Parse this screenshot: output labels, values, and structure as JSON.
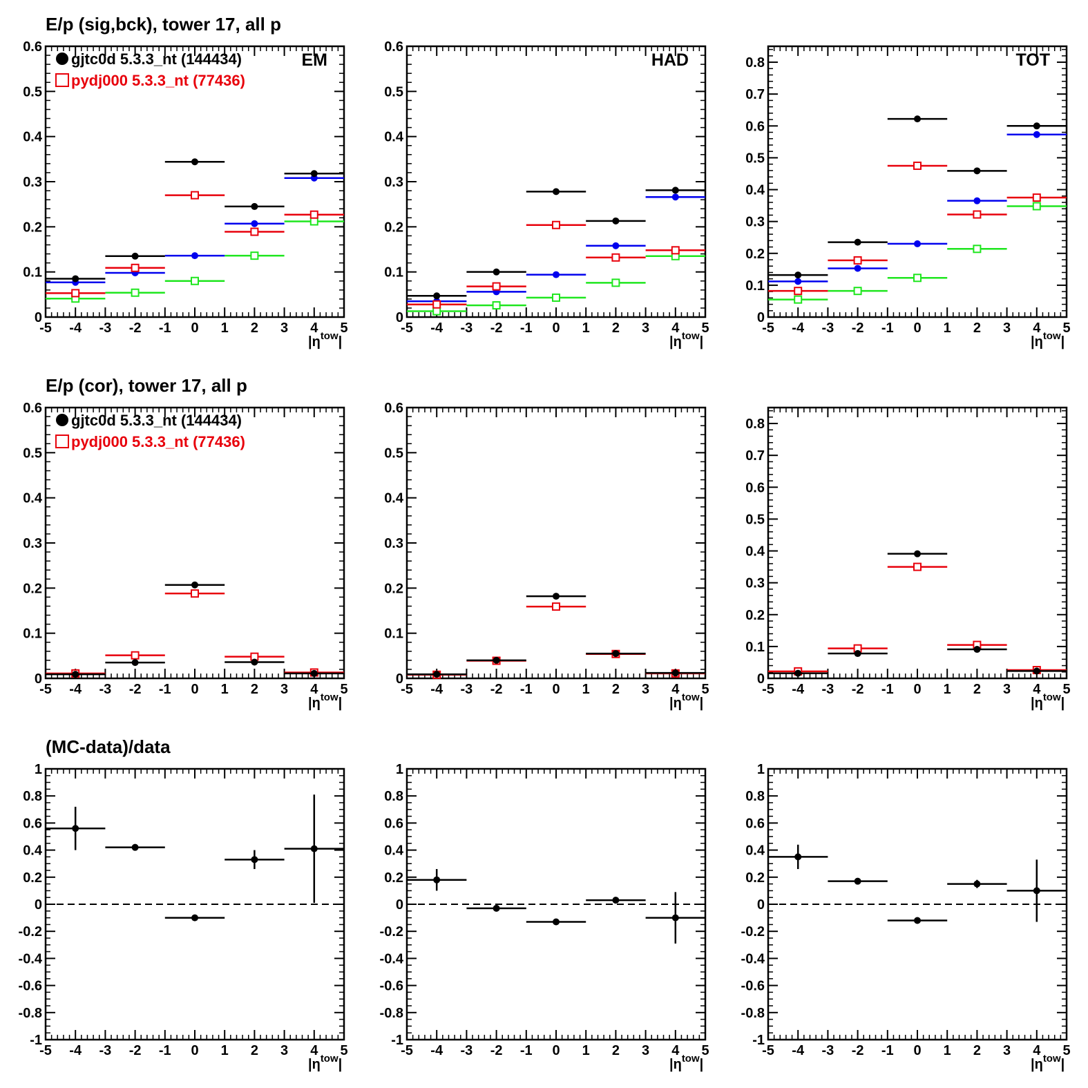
{
  "colors": {
    "data": "#000000",
    "mc": "#e8000b",
    "green": "#1ee61e",
    "blue": "#0000ee"
  },
  "row_titles": [
    "E/p (sig,bck), tower 17, all p",
    "E/p (cor), tower 17, all p",
    "(MC-data)/data"
  ],
  "legend": [
    {
      "label": "gjtc0d 5.3.3_nt (144434)",
      "color": "#000000",
      "marker": "filled-circle"
    },
    {
      "label": "pydj000 5.3.3_nt (77436)",
      "color": "#e8000b",
      "marker": "open-square"
    }
  ],
  "xaxis": {
    "label_main": "|η",
    "label_sup": "tow",
    "label_end": "|",
    "range": [
      -5,
      5
    ],
    "tick_labels": [
      "-5",
      "-4",
      "-3",
      "-2",
      "-1",
      "0",
      "1",
      "2",
      "3",
      "4",
      "5"
    ]
  },
  "panel_tags": [
    "EM",
    "HAD",
    "TOT"
  ],
  "y_tick_labels": {
    "r06": [
      "0",
      "0.1",
      "0.2",
      "0.3",
      "0.4",
      "0.5",
      "0.6"
    ],
    "r085": [
      "0",
      "0.1",
      "0.2",
      "0.3",
      "0.4",
      "0.5",
      "0.6",
      "0.7",
      "0.8"
    ],
    "ratio": [
      "-1",
      "-0.8",
      "-0.6",
      "-0.4",
      "-0.2",
      "0",
      "0.2",
      "0.4",
      "0.6",
      "0.8",
      "1"
    ]
  },
  "chart_data": [
    {
      "type": "scatter",
      "panel": "EM (sig,bck)",
      "x_bins": [
        [
          -5,
          -3
        ],
        [
          -3,
          -1
        ],
        [
          -1,
          1
        ],
        [
          1,
          3
        ],
        [
          3,
          5
        ]
      ],
      "xlim": [
        -5,
        5
      ],
      "ylim": [
        0,
        0.6
      ],
      "series": [
        {
          "name": "gjtc0d 5.3.3_nt (144434)",
          "color": "#000000",
          "marker": "circle",
          "x": [
            -4,
            -2,
            0,
            2,
            4
          ],
          "y": [
            0.085,
            0.135,
            0.344,
            0.245,
            0.318
          ]
        },
        {
          "name": "pydj000 5.3.3_nt (77436)",
          "color": "#e8000b",
          "marker": "square",
          "x": [
            -4,
            -2,
            0,
            2,
            4
          ],
          "y": [
            0.053,
            0.109,
            0.27,
            0.189,
            0.227
          ]
        },
        {
          "color": "#0000ee",
          "marker": "circle",
          "x": [
            -4,
            -2,
            0,
            2,
            4
          ],
          "y": [
            0.077,
            0.098,
            0.136,
            0.207,
            0.308
          ]
        },
        {
          "color": "#1ee61e",
          "marker": "square",
          "x": [
            -4,
            -2,
            0,
            2,
            4
          ],
          "y": [
            0.041,
            0.054,
            0.08,
            0.136,
            0.212
          ]
        }
      ]
    },
    {
      "type": "scatter",
      "panel": "HAD (sig,bck)",
      "x_bins": [
        [
          -5,
          -3
        ],
        [
          -3,
          -1
        ],
        [
          -1,
          1
        ],
        [
          1,
          3
        ],
        [
          3,
          5
        ]
      ],
      "xlim": [
        -5,
        5
      ],
      "ylim": [
        0,
        0.6
      ],
      "series": [
        {
          "name": "gjtc0d 5.3.3_nt (144434)",
          "color": "#000000",
          "marker": "circle",
          "x": [
            -4,
            -2,
            0,
            2,
            4
          ],
          "y": [
            0.047,
            0.1,
            0.278,
            0.213,
            0.281
          ]
        },
        {
          "name": "pydj000 5.3.3_nt (77436)",
          "color": "#e8000b",
          "marker": "square",
          "x": [
            -4,
            -2,
            0,
            2,
            4
          ],
          "y": [
            0.028,
            0.068,
            0.204,
            0.132,
            0.148
          ]
        },
        {
          "color": "#0000ee",
          "marker": "circle",
          "x": [
            -4,
            -2,
            0,
            2,
            4
          ],
          "y": [
            0.035,
            0.056,
            0.094,
            0.158,
            0.266
          ]
        },
        {
          "color": "#1ee61e",
          "marker": "square",
          "x": [
            -4,
            -2,
            0,
            2,
            4
          ],
          "y": [
            0.013,
            0.026,
            0.043,
            0.076,
            0.135
          ]
        }
      ]
    },
    {
      "type": "scatter",
      "panel": "TOT (sig,bck)",
      "x_bins": [
        [
          -5,
          -3
        ],
        [
          -3,
          -1
        ],
        [
          -1,
          1
        ],
        [
          1,
          3
        ],
        [
          3,
          5
        ]
      ],
      "xlim": [
        -5,
        5
      ],
      "ylim": [
        0,
        0.85
      ],
      "series": [
        {
          "name": "gjtc0d 5.3.3_nt (144434)",
          "color": "#000000",
          "marker": "circle",
          "x": [
            -4,
            -2,
            0,
            2,
            4
          ],
          "y": [
            0.132,
            0.235,
            0.622,
            0.459,
            0.6
          ]
        },
        {
          "name": "pydj000 5.3.3_nt (77436)",
          "color": "#e8000b",
          "marker": "square",
          "x": [
            -4,
            -2,
            0,
            2,
            4
          ],
          "y": [
            0.082,
            0.178,
            0.475,
            0.322,
            0.375
          ]
        },
        {
          "color": "#0000ee",
          "marker": "circle",
          "x": [
            -4,
            -2,
            0,
            2,
            4
          ],
          "y": [
            0.112,
            0.153,
            0.23,
            0.365,
            0.573
          ]
        },
        {
          "color": "#1ee61e",
          "marker": "square",
          "x": [
            -4,
            -2,
            0,
            2,
            4
          ],
          "y": [
            0.055,
            0.082,
            0.123,
            0.214,
            0.348
          ]
        }
      ]
    },
    {
      "type": "scatter",
      "panel": "EM (cor)",
      "x_bins": [
        [
          -5,
          -3
        ],
        [
          -3,
          -1
        ],
        [
          -1,
          1
        ],
        [
          1,
          3
        ],
        [
          3,
          5
        ]
      ],
      "xlim": [
        -5,
        5
      ],
      "ylim": [
        0,
        0.6
      ],
      "series": [
        {
          "name": "gjtc0d 5.3.3_nt (144434)",
          "color": "#000000",
          "marker": "circle",
          "x": [
            -4,
            -2,
            0,
            2,
            4
          ],
          "y": [
            0.009,
            0.035,
            0.207,
            0.036,
            0.011
          ]
        },
        {
          "name": "pydj000 5.3.3_nt (77436)",
          "color": "#e8000b",
          "marker": "square",
          "x": [
            -4,
            -2,
            0,
            2,
            4
          ],
          "y": [
            0.011,
            0.051,
            0.188,
            0.048,
            0.013
          ]
        }
      ]
    },
    {
      "type": "scatter",
      "panel": "HAD (cor)",
      "x_bins": [
        [
          -5,
          -3
        ],
        [
          -3,
          -1
        ],
        [
          -1,
          1
        ],
        [
          1,
          3
        ],
        [
          3,
          5
        ]
      ],
      "xlim": [
        -5,
        5
      ],
      "ylim": [
        0,
        0.6
      ],
      "series": [
        {
          "name": "gjtc0d 5.3.3_nt (144434)",
          "color": "#000000",
          "marker": "circle",
          "x": [
            -4,
            -2,
            0,
            2,
            4
          ],
          "y": [
            0.009,
            0.04,
            0.182,
            0.055,
            0.012
          ]
        },
        {
          "name": "pydj000 5.3.3_nt (77436)",
          "color": "#e8000b",
          "marker": "square",
          "x": [
            -4,
            -2,
            0,
            2,
            4
          ],
          "y": [
            0.008,
            0.039,
            0.159,
            0.054,
            0.011
          ]
        }
      ]
    },
    {
      "type": "scatter",
      "panel": "TOT (cor)",
      "x_bins": [
        [
          -5,
          -3
        ],
        [
          -3,
          -1
        ],
        [
          -1,
          1
        ],
        [
          1,
          3
        ],
        [
          3,
          5
        ]
      ],
      "xlim": [
        -5,
        5
      ],
      "ylim": [
        0,
        0.85
      ],
      "series": [
        {
          "name": "gjtc0d 5.3.3_nt (144434)",
          "color": "#000000",
          "marker": "circle",
          "x": [
            -4,
            -2,
            0,
            2,
            4
          ],
          "y": [
            0.016,
            0.078,
            0.391,
            0.091,
            0.023
          ]
        },
        {
          "name": "pydj000 5.3.3_nt (77436)",
          "color": "#e8000b",
          "marker": "square",
          "x": [
            -4,
            -2,
            0,
            2,
            4
          ],
          "y": [
            0.022,
            0.094,
            0.35,
            0.105,
            0.026
          ]
        }
      ]
    },
    {
      "type": "scatter",
      "panel": "EM ratio",
      "x_bins": [
        [
          -5,
          -3
        ],
        [
          -3,
          -1
        ],
        [
          -1,
          1
        ],
        [
          1,
          3
        ],
        [
          3,
          5
        ]
      ],
      "xlim": [
        -5,
        5
      ],
      "ylim": [
        -1,
        1
      ],
      "reference_line": 0,
      "series": [
        {
          "color": "#000000",
          "marker": "circle",
          "x": [
            -4,
            -2,
            0,
            2,
            4
          ],
          "y": [
            0.56,
            0.42,
            -0.1,
            0.33,
            0.41
          ],
          "yerr": [
            0.16,
            0.02,
            0.01,
            0.07,
            0.4
          ]
        }
      ]
    },
    {
      "type": "scatter",
      "panel": "HAD ratio",
      "x_bins": [
        [
          -5,
          -3
        ],
        [
          -3,
          -1
        ],
        [
          -1,
          1
        ],
        [
          1,
          3
        ],
        [
          3,
          5
        ]
      ],
      "xlim": [
        -5,
        5
      ],
      "ylim": [
        -1,
        1
      ],
      "reference_line": 0,
      "series": [
        {
          "color": "#000000",
          "marker": "circle",
          "x": [
            -4,
            -2,
            0,
            2,
            4
          ],
          "y": [
            0.18,
            -0.03,
            -0.13,
            0.03,
            -0.1
          ],
          "yerr": [
            0.08,
            0.02,
            0.01,
            0.02,
            0.19
          ]
        }
      ]
    },
    {
      "type": "scatter",
      "panel": "TOT ratio",
      "x_bins": [
        [
          -5,
          -3
        ],
        [
          -3,
          -1
        ],
        [
          -1,
          1
        ],
        [
          1,
          3
        ],
        [
          3,
          5
        ]
      ],
      "xlim": [
        -5,
        5
      ],
      "ylim": [
        -1,
        1
      ],
      "reference_line": 0,
      "series": [
        {
          "color": "#000000",
          "marker": "circle",
          "x": [
            -4,
            -2,
            0,
            2,
            4
          ],
          "y": [
            0.35,
            0.17,
            -0.12,
            0.15,
            0.1
          ],
          "yerr": [
            0.09,
            0.02,
            0.01,
            0.03,
            0.23
          ]
        }
      ]
    }
  ]
}
